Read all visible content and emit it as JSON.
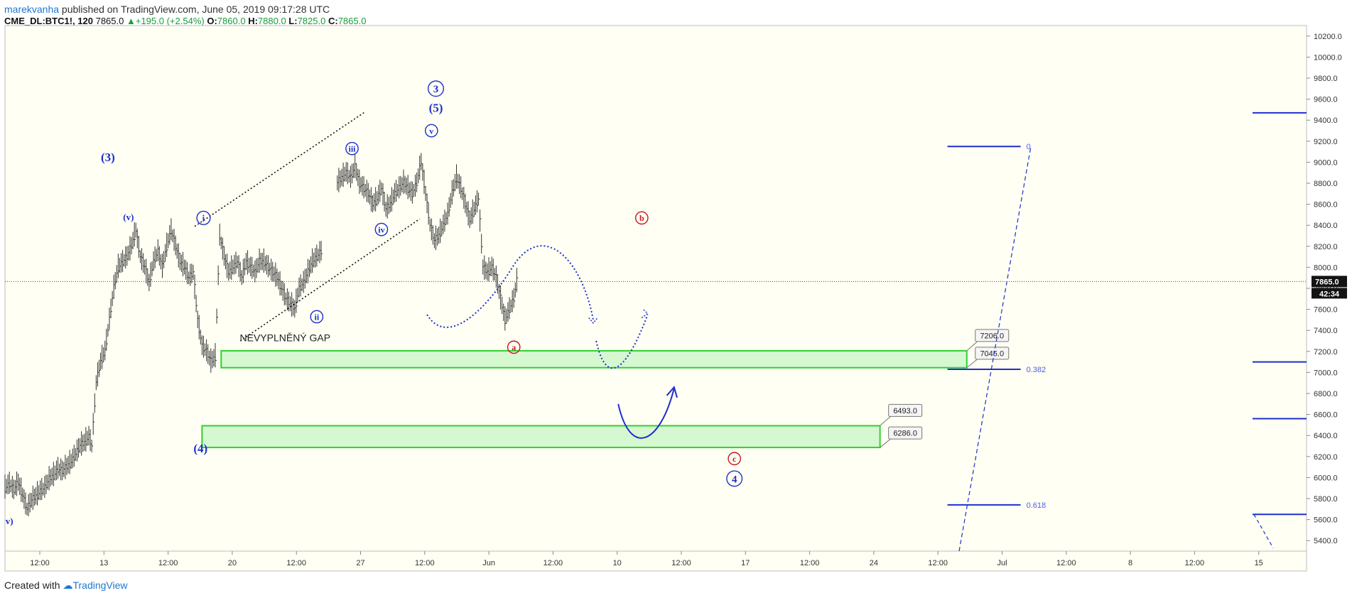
{
  "header": {
    "author": "marekvanha",
    "published": " published on TradingView.com, June 05, 2019 09:17:28 UTC",
    "symbol": "CME_DL:BTC1!, 120",
    "last": "7865.0",
    "change": "+195.0 (+2.54%)",
    "o_label": "O:",
    "o_value": "7860.0",
    "h_label": "H:",
    "h_value": "7880.0",
    "l_label": "L:",
    "l_value": "7825.0",
    "c_label": "C:",
    "c_value": "7865.0"
  },
  "footer": {
    "created_with": "Created with",
    "brand": "TradingView"
  },
  "colors": {
    "wave": "#1d2fcc",
    "corrective": "#c8161d",
    "zone_fill": "#d5f8d0",
    "zone_stroke": "#2fd12f",
    "bar": "#333333"
  },
  "chart_data": {
    "type": "candlestick-annotated",
    "ylim": [
      5300,
      10300
    ],
    "y_ticks": [
      5400,
      5600,
      5800,
      6000,
      6200,
      6400,
      6600,
      6800,
      7000,
      7200,
      7400,
      7600,
      7800,
      8000,
      8200,
      8400,
      8600,
      8800,
      9000,
      9200,
      9400,
      9600,
      9800,
      10000,
      10200
    ],
    "y_tick_labels": [
      "5400.0",
      "5600.0",
      "5800.0",
      "6000.0",
      "6200.0",
      "6400.0",
      "6600.0",
      "6800.0",
      "7000.0",
      "7200.0",
      "7400.0",
      "7600.0",
      "7800.0",
      "8000.0",
      "8200.0",
      "8400.0",
      "8600.0",
      "8800.0",
      "9000.0",
      "9200.0",
      "9400.0",
      "9600.0",
      "9800.0",
      "10000.0",
      "10200.0"
    ],
    "x_ticks": [
      "12:00",
      "13",
      "12:00",
      "20",
      "12:00",
      "27",
      "12:00",
      "Jun",
      "12:00",
      "10",
      "12:00",
      "17",
      "12:00",
      "24",
      "12:00",
      "Jul",
      "12:00",
      "8",
      "12:00",
      "15"
    ],
    "current_price": 7865.0,
    "current_price_label": "7865.0",
    "countdown_label": "42:34",
    "price_path": [
      [
        0,
        5900
      ],
      [
        3,
        5940
      ],
      [
        6,
        5880
      ],
      [
        9,
        5950
      ],
      [
        12,
        5830
      ],
      [
        15,
        5700
      ],
      [
        18,
        5780
      ],
      [
        21,
        5820
      ],
      [
        24,
        5870
      ],
      [
        27,
        5900
      ],
      [
        30,
        5980
      ],
      [
        33,
        6020
      ],
      [
        36,
        6080
      ],
      [
        39,
        6060
      ],
      [
        42,
        6100
      ],
      [
        45,
        6150
      ],
      [
        48,
        6220
      ],
      [
        51,
        6300
      ],
      [
        54,
        6330
      ],
      [
        57,
        6390
      ],
      [
        59,
        6300
      ],
      [
        62,
        6900
      ],
      [
        65,
        7100
      ],
      [
        68,
        7200
      ],
      [
        71,
        7500
      ],
      [
        74,
        7800
      ],
      [
        77,
        8000
      ],
      [
        80,
        8050
      ],
      [
        83,
        8100
      ],
      [
        86,
        8200
      ],
      [
        89,
        8350
      ],
      [
        92,
        8100
      ],
      [
        95,
        8000
      ],
      [
        98,
        7850
      ],
      [
        101,
        8050
      ],
      [
        104,
        8150
      ],
      [
        107,
        8000
      ],
      [
        110,
        8200
      ],
      [
        113,
        8350
      ],
      [
        116,
        8200
      ],
      [
        119,
        8050
      ],
      [
        122,
        8000
      ],
      [
        125,
        7900
      ],
      [
        128,
        7950
      ],
      [
        131,
        7500
      ],
      [
        134,
        7250
      ],
      [
        137,
        7200
      ],
      [
        140,
        7100
      ],
      [
        143,
        7150
      ],
      [
        146,
        8300
      ],
      [
        149,
        8100
      ],
      [
        152,
        7950
      ],
      [
        155,
        8000
      ],
      [
        158,
        8050
      ],
      [
        161,
        7900
      ],
      [
        164,
        8050
      ],
      [
        167,
        8000
      ],
      [
        170,
        7950
      ],
      [
        173,
        8050
      ],
      [
        176,
        8050
      ],
      [
        179,
        8000
      ],
      [
        182,
        7950
      ],
      [
        185,
        7900
      ],
      [
        188,
        7800
      ],
      [
        191,
        7700
      ],
      [
        194,
        7650
      ],
      [
        197,
        7600
      ],
      [
        200,
        7800
      ],
      [
        203,
        7850
      ],
      [
        206,
        7950
      ],
      [
        209,
        8050
      ],
      [
        212,
        8100
      ],
      [
        215,
        8150
      ],
      [
        226,
        8800
      ],
      [
        229,
        8850
      ],
      [
        232,
        8900
      ],
      [
        235,
        8850
      ],
      [
        238,
        8950
      ],
      [
        241,
        8800
      ],
      [
        244,
        8750
      ],
      [
        247,
        8700
      ],
      [
        250,
        8600
      ],
      [
        253,
        8650
      ],
      [
        256,
        8750
      ],
      [
        259,
        8550
      ],
      [
        262,
        8600
      ],
      [
        265,
        8700
      ],
      [
        268,
        8750
      ],
      [
        271,
        8800
      ],
      [
        274,
        8750
      ],
      [
        277,
        8700
      ],
      [
        280,
        8800
      ],
      [
        283,
        9000
      ],
      [
        286,
        8700
      ],
      [
        289,
        8400
      ],
      [
        292,
        8250
      ],
      [
        295,
        8300
      ],
      [
        298,
        8400
      ],
      [
        301,
        8500
      ],
      [
        304,
        8700
      ],
      [
        307,
        8850
      ],
      [
        310,
        8750
      ],
      [
        313,
        8600
      ],
      [
        316,
        8450
      ],
      [
        319,
        8550
      ],
      [
        322,
        8650
      ],
      [
        325,
        8000
      ],
      [
        328,
        7950
      ],
      [
        331,
        8000
      ],
      [
        334,
        7900
      ],
      [
        337,
        7700
      ],
      [
        340,
        7500
      ],
      [
        343,
        7600
      ],
      [
        346,
        7700
      ],
      [
        348,
        7865
      ]
    ],
    "wave_labels": [
      {
        "text": "(3)",
        "color": "wave",
        "x": 70,
        "y": 9050,
        "size": 17,
        "circle": false
      },
      {
        "text": "(v)",
        "color": "wave",
        "x": 84,
        "y": 8480,
        "size": 13,
        "circle": false
      },
      {
        "text": "i",
        "color": "wave",
        "x": 135,
        "y": 8470,
        "size": 13,
        "circle": true
      },
      {
        "text": "ii",
        "color": "wave",
        "x": 212,
        "y": 7530,
        "size": 12,
        "circle": true
      },
      {
        "text": "iii",
        "color": "wave",
        "x": 236,
        "y": 9130,
        "size": 12,
        "circle": true
      },
      {
        "text": "iv",
        "color": "wave",
        "x": 256,
        "y": 8360,
        "size": 12,
        "circle": true
      },
      {
        "text": "v",
        "color": "wave",
        "x": 290,
        "y": 9300,
        "size": 12,
        "circle": true
      },
      {
        "text": "(5)",
        "color": "wave",
        "x": 293,
        "y": 9520,
        "size": 17,
        "circle": false
      },
      {
        "text": "3",
        "color": "wave",
        "x": 293,
        "y": 9700,
        "size": 15,
        "circle": true
      },
      {
        "text": "(4)",
        "color": "wave",
        "x": 133,
        "y": 6280,
        "size": 17,
        "circle": false
      },
      {
        "text": "v)",
        "color": "wave",
        "x": 3,
        "y": 5590,
        "size": 13,
        "circle": false
      },
      {
        "text": "a",
        "color": "corrective",
        "x": 346,
        "y": 7240,
        "size": 12,
        "circle": true
      },
      {
        "text": "b",
        "color": "corrective",
        "x": 433,
        "y": 8470,
        "size": 12,
        "circle": true
      },
      {
        "text": "c",
        "color": "corrective",
        "x": 496,
        "y": 6180,
        "size": 12,
        "circle": true
      },
      {
        "text": "4",
        "color": "wave",
        "x": 496,
        "y": 5990,
        "size": 15,
        "circle": true
      }
    ],
    "gap_label": {
      "text": "NEVYPLNĚNÝ GAP",
      "x": 150,
      "y": 7330
    },
    "zones": [
      {
        "x0": 147,
        "x1": 654,
        "top": 7206.0,
        "bottom": 7045.0,
        "top_label": "7206.0",
        "bottom_label": "7045.0"
      },
      {
        "x0": 134,
        "x1": 595,
        "top": 6493.0,
        "bottom": 6286.0,
        "top_label": "6493.0",
        "bottom_label": "6286.0"
      }
    ],
    "fib_levels": [
      {
        "x0": 594,
        "x1": 660,
        "value": 9150,
        "label": "0"
      },
      {
        "x0": 594,
        "x1": 660,
        "value": 7030,
        "label": "0.382"
      },
      {
        "x0": 594,
        "x1": 660,
        "value": 5740,
        "label": "0.618"
      }
    ],
    "right_lines": [
      9470,
      7100,
      6560,
      5650
    ]
  }
}
